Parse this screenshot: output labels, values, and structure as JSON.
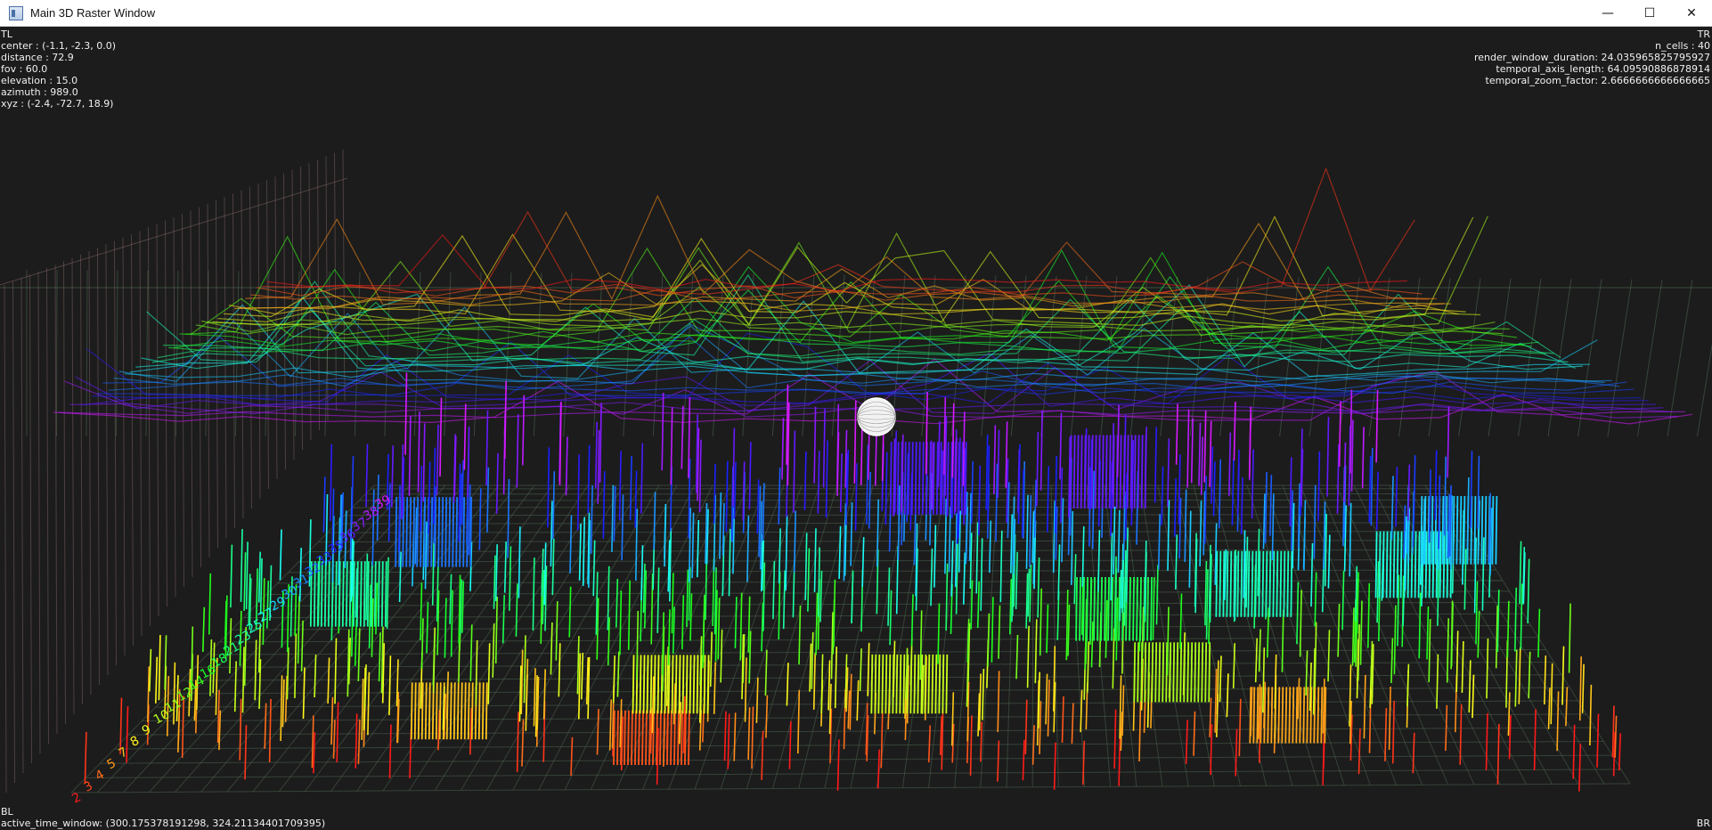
{
  "window": {
    "title": "Main 3D Raster Window",
    "controls": {
      "minimize": "—",
      "maximize": "☐",
      "close": "✕"
    }
  },
  "hud": {
    "tl": [
      "TL",
      "center : (-1.1, -2.3, 0.0)",
      "distance : 72.9",
      "fov : 60.0",
      "elevation : 15.0",
      "azimuth : 989.0",
      "xyz : (-2.4, -72.7, 18.9)"
    ],
    "tr": [
      "TR",
      "n_cells : 40",
      "render_window_duration: 24.035965825795927",
      "temporal_axis_length: 64.09590886878914",
      "temporal_zoom_factor: 2.6666666666666665"
    ],
    "bl": [
      "BL",
      "active_time_window: (300.175378191298, 324.21134401709395)"
    ],
    "br": [
      "BR"
    ]
  },
  "scene": {
    "cell_labels": [
      "2",
      "3",
      "4",
      "5",
      "7",
      "8",
      "9",
      "10",
      "11",
      "12",
      "14",
      "16",
      "18",
      "21",
      "23",
      "25",
      "27",
      "29",
      "30",
      "31",
      "32",
      "33",
      "35",
      "36",
      "37",
      "38",
      "39"
    ],
    "colors": {
      "background": "#1c1c1c",
      "grid": "#4f6a52",
      "wall": "#8a6a6a",
      "sphere": "#ffffff"
    },
    "n_cells": 40,
    "active_time_window": [
      300.175378191298,
      324.21134401709395
    ]
  }
}
